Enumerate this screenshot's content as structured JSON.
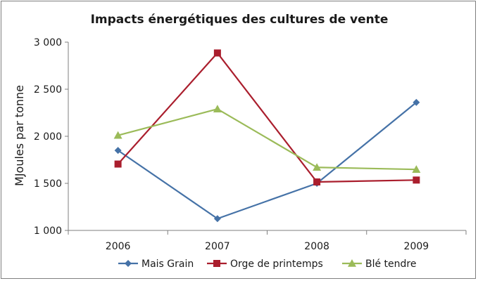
{
  "chart_data": {
    "type": "line",
    "title": "Impacts énergétiques des cultures de vente",
    "xlabel": "",
    "ylabel": "MJoules par tonne",
    "categories": [
      "2006",
      "2007",
      "2008",
      "2009"
    ],
    "ylim": [
      1000,
      3000
    ],
    "yticks": [
      1000,
      1500,
      2000,
      2500,
      3000
    ],
    "ytick_labels": [
      "1 000",
      "1 500",
      "2 000",
      "2 500",
      "3 000"
    ],
    "grid": false,
    "legend_position": "bottom",
    "series": [
      {
        "name": "Mais Grain",
        "values": [
          1850,
          1125,
          1500,
          2360
        ],
        "color": "#4572a7",
        "marker": "diamond"
      },
      {
        "name": "Orge de printemps",
        "values": [
          1705,
          2885,
          1515,
          1535
        ],
        "color": "#aa1e2d",
        "marker": "square"
      },
      {
        "name": "Blé tendre",
        "values": [
          2010,
          2290,
          1670,
          1648
        ],
        "color": "#9bbb59",
        "marker": "triangle"
      }
    ]
  }
}
